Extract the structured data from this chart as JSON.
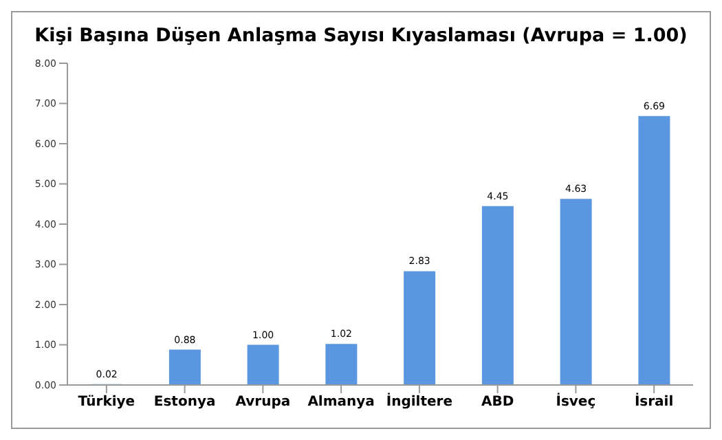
{
  "chart_data": {
    "type": "bar",
    "title": "Kişi Başına Düşen Anlaşma Sayısı Kıyaslaması (Avrupa = 1.00)",
    "categories": [
      "Türkiye",
      "Estonya",
      "Avrupa",
      "Almanya",
      "İngiltere",
      "ABD",
      "İsveç",
      "İsrail"
    ],
    "values": [
      0.02,
      0.88,
      1.0,
      1.02,
      2.83,
      4.45,
      4.63,
      6.69
    ],
    "value_labels": [
      "0.02",
      "0.88",
      "1.00",
      "1.02",
      "2.83",
      "4.45",
      "4.63",
      "6.69"
    ],
    "color": "#5b97e0",
    "ylim": [
      0,
      8
    ],
    "yticks": [
      {
        "value": 0,
        "label": "0.00"
      },
      {
        "value": 1,
        "label": "1.00"
      },
      {
        "value": 2,
        "label": "2.00"
      },
      {
        "value": 3,
        "label": "3.00"
      },
      {
        "value": 4,
        "label": "4.00"
      },
      {
        "value": 5,
        "label": "5.00"
      },
      {
        "value": 6,
        "label": "6.00"
      },
      {
        "value": 7,
        "label": "7.00"
      },
      {
        "value": 8,
        "label": "8.00"
      }
    ],
    "grid": false,
    "legend": false
  }
}
